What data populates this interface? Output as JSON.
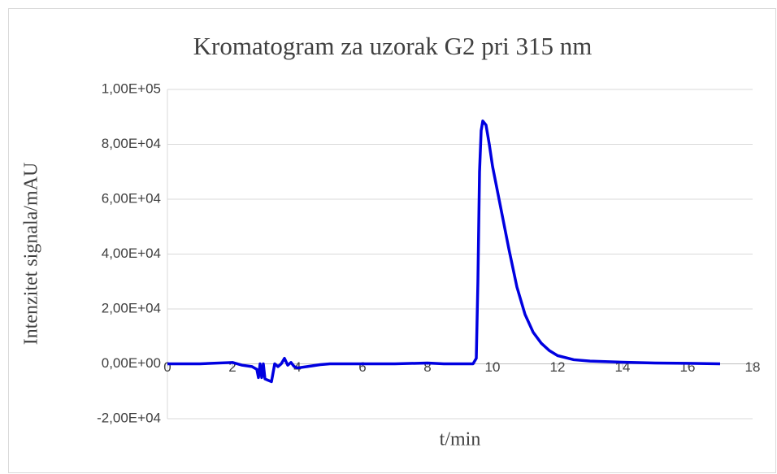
{
  "chart_data": {
    "type": "line",
    "title": "Kromatogram za uzorak G2 pri 315 nm",
    "x_label": "t/min",
    "y_label": "Intenzitet signala/mAU",
    "xlim": [
      0,
      18
    ],
    "xticks": [
      0,
      2,
      4,
      6,
      8,
      10,
      12,
      14,
      16,
      18
    ],
    "ylim": [
      -20000,
      100000
    ],
    "yticks": [
      {
        "value": -20000,
        "label": "-2,00E+04"
      },
      {
        "value": 0,
        "label": "0,00E+00"
      },
      {
        "value": 20000,
        "label": "2,00E+04"
      },
      {
        "value": 40000,
        "label": "4,00E+04"
      },
      {
        "value": 60000,
        "label": "6,00E+04"
      },
      {
        "value": 80000,
        "label": "8,00E+04"
      },
      {
        "value": 100000,
        "label": "1,00E+05"
      }
    ],
    "grid": true,
    "series": [
      {
        "color": "#0000e0",
        "x": [
          0,
          1,
          2,
          2.3,
          2.6,
          2.75,
          2.8,
          2.85,
          2.9,
          2.95,
          3.0,
          3.1,
          3.2,
          3.3,
          3.4,
          3.5,
          3.6,
          3.7,
          3.8,
          3.9,
          4.0,
          4.3,
          4.7,
          5,
          6,
          7,
          8,
          8.5,
          9,
          9.4,
          9.5,
          9.55,
          9.6,
          9.65,
          9.7,
          9.8,
          9.9,
          10,
          10.25,
          10.5,
          10.75,
          11,
          11.25,
          11.5,
          11.75,
          12,
          12.5,
          13,
          14,
          15,
          16,
          17
        ],
        "values": [
          0,
          0,
          500,
          -500,
          -1000,
          -2000,
          -5000,
          0,
          -5000,
          0,
          -5500,
          -6000,
          -6500,
          0,
          -1000,
          0,
          2000,
          -500,
          500,
          -1000,
          -1500,
          -1000,
          -300,
          0,
          0,
          0,
          300,
          0,
          0,
          0,
          2000,
          30000,
          70000,
          85000,
          88500,
          87000,
          80000,
          72000,
          57000,
          42000,
          28000,
          18000,
          11500,
          7500,
          4800,
          3000,
          1500,
          1000,
          600,
          300,
          200,
          0
        ]
      }
    ]
  }
}
